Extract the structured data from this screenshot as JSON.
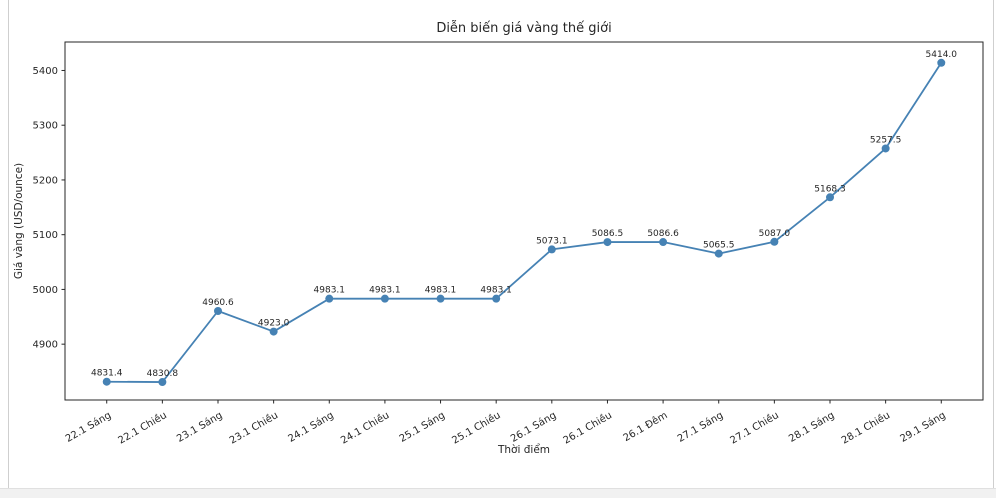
{
  "page": {
    "background": "#ffffff",
    "frame_border_color": "#cfcfcf"
  },
  "chart_data": {
    "type": "line",
    "title": "Diễn biến giá vàng thế giới",
    "xlabel": "Thời điểm",
    "ylabel": "Giá vàng (USD/ounce)",
    "categories": [
      "22.1 Sáng",
      "22.1 Chiều",
      "23.1 Sáng",
      "23.1 Chiều",
      "24.1 Sáng",
      "24.1 Chiều",
      "25.1 Sáng",
      "25.1 Chiều",
      "26.1 Sáng",
      "26.1 Chiều",
      "26.1 Đêm",
      "27.1 Sáng",
      "27.1 Chiều",
      "28.1 Sáng",
      "28.1 Chiều",
      "29.1 Sáng"
    ],
    "values": [
      4831.4,
      4830.8,
      4960.6,
      4923.0,
      4983.1,
      4983.1,
      4983.1,
      4983.1,
      5073.1,
      5086.5,
      5086.6,
      5065.5,
      5087.0,
      5168.3,
      5257.5,
      5414.0
    ],
    "point_label_decimals": 1,
    "yticks": [
      4900,
      5000,
      5100,
      5200,
      5300,
      5400
    ],
    "ylim": [
      4798,
      5452
    ],
    "x_margin": 0.75,
    "xtick_rotation_deg": 30,
    "grid": false,
    "legend": null,
    "line_color": "#4682b4",
    "marker_color": "#4682b4",
    "axis_color": "#262626",
    "text_color": "#262626"
  }
}
